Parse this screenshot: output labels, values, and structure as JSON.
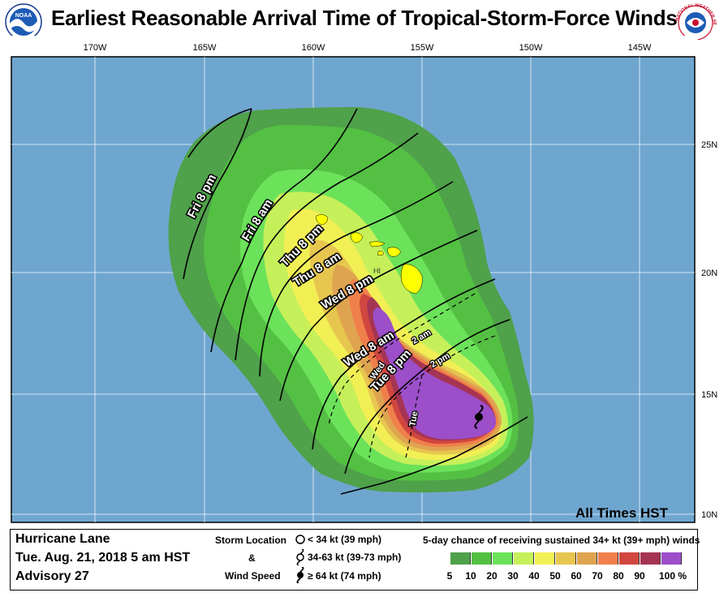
{
  "title": "Earliest Reasonable Arrival Time of Tropical-Storm-Force Winds",
  "logos": {
    "left": "noaa-logo",
    "left_text": "NOAA",
    "right": "nws-logo",
    "right_text": "NATIONAL WEATHER SERVICE"
  },
  "map": {
    "longitude_labels": [
      "170W",
      "165W",
      "160W",
      "155W",
      "150W",
      "145W"
    ],
    "latitude_labels": [
      "25N",
      "20N",
      "15N",
      "10N"
    ],
    "time_contours": [
      "Fri 8 pm",
      "Fri 8 am",
      "Thu 8 pm",
      "Thu 8 am",
      "Wed 8 pm",
      "Wed 8 am",
      "Tue 8 pm"
    ],
    "small_labels": [
      "Wed",
      "2 am",
      "2 pm",
      "Tue"
    ],
    "state_label": "HI",
    "times_note": "All Times HST",
    "colors": {
      "ocean": "#6fa6cf",
      "land": "#ffff00"
    }
  },
  "storm": {
    "name": "Hurricane Lane",
    "datetime": "Tue. Aug. 21, 2018  5 am HST",
    "advisory": "Advisory 27",
    "center_icon": "hurricane-icon"
  },
  "legend": {
    "storm_location_label": "Storm Location",
    "amp": "&",
    "wind_speed_label": "Wind Speed",
    "entries": [
      {
        "icon": "open-circle-icon",
        "label": "< 34 kt (39 mph)"
      },
      {
        "icon": "tropical-storm-icon",
        "label": "34-63 kt (39-73 mph)"
      },
      {
        "icon": "hurricane-icon",
        "label": "≥ 64 kt (74 mph)"
      }
    ],
    "probability_title": "5-day chance of receiving sustained 34+ kt (39+ mph) winds",
    "scale": [
      {
        "label": "5",
        "color": "#4fa14a"
      },
      {
        "label": "10",
        "color": "#54c043"
      },
      {
        "label": "20",
        "color": "#6be25a"
      },
      {
        "label": "30",
        "color": "#c6f05a"
      },
      {
        "label": "40",
        "color": "#f2ef55"
      },
      {
        "label": "50",
        "color": "#e7c64f"
      },
      {
        "label": "60",
        "color": "#dfa450"
      },
      {
        "label": "70",
        "color": "#f0804b"
      },
      {
        "label": "80",
        "color": "#d1473f"
      },
      {
        "label": "90",
        "color": "#a53454"
      },
      {
        "label": "100 %",
        "color": "#9c4fc9"
      }
    ]
  }
}
